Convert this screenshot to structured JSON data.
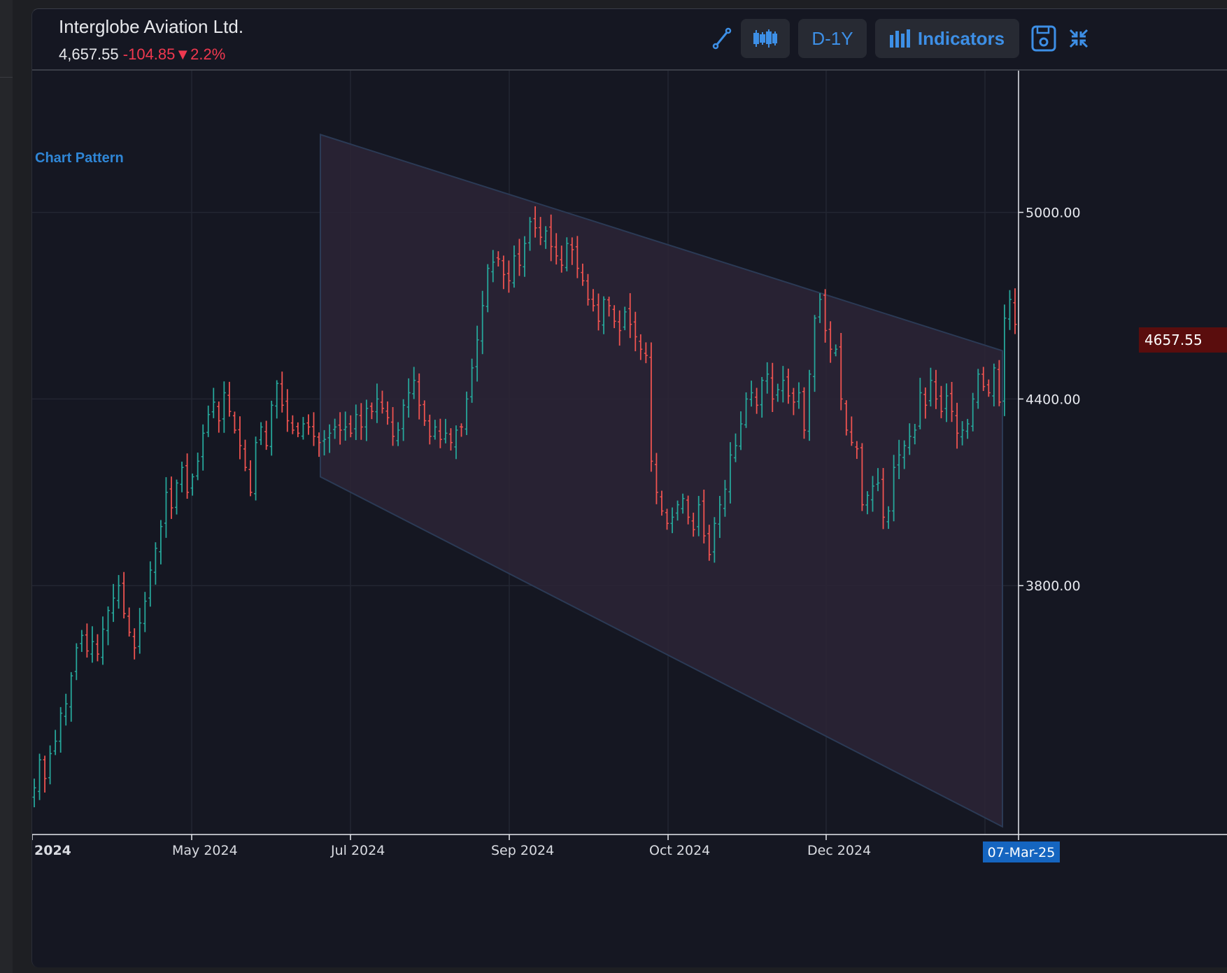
{
  "header": {
    "title": "Interglobe Aviation Ltd.",
    "price": "4,657.55",
    "change": "-104.85",
    "change_arrow": "▼",
    "change_pct": "2.2%"
  },
  "toolbar": {
    "draw_icon": "line-draw-icon",
    "chart_type_icon": "candlestick-icon",
    "timeframe_label": "D-1Y",
    "indicators_label": "Indicators",
    "indicators_icon": "bar-chart-icon",
    "save_icon": "save-icon",
    "collapse_icon": "collapse-arrows-icon"
  },
  "colors": {
    "background": "#151722",
    "up": "#26a69a",
    "down": "#ef5350",
    "accent": "#3d8fe6",
    "last_price_bg": "#5a0d0d",
    "channel_fill": "#2c2536"
  },
  "chart_data": {
    "type": "ohlc",
    "title": "",
    "overlay_label": "Chart Pattern",
    "overlay_type": "descending channel",
    "x_tick_labels": [
      "2024",
      "May 2024",
      "Jul 2024",
      "Sep 2024",
      "Oct 2024",
      "Dec 2024"
    ],
    "x_current_label": "07-Mar-25",
    "y_tick_labels": [
      "5000.00",
      "4400.00",
      "3800.00"
    ],
    "y_ticks": [
      5000,
      4400,
      3800
    ],
    "ylim": [
      3000,
      5460
    ],
    "last_price": 4657.55,
    "last_price_label": "4657.55",
    "grid": true,
    "channel": {
      "upper_start": 5250,
      "upper_end": 4555,
      "lower_start": 4150,
      "lower_end": 3025
    },
    "series": [
      {
        "close": [
          3150,
          3240,
          3180,
          3260,
          3300,
          3390,
          3420,
          3510,
          3600,
          3640,
          3590,
          3620,
          3580,
          3660,
          3720,
          3760,
          3800,
          3710,
          3650,
          3600,
          3680,
          3750,
          3850,
          3920,
          3990,
          4100,
          4050,
          4130,
          4180,
          4100,
          4150,
          4200,
          4290,
          4350,
          4390,
          4330,
          4420,
          4360,
          4300,
          4250,
          4180,
          4100,
          4260,
          4310,
          4250,
          4380,
          4450,
          4380,
          4330,
          4300,
          4290,
          4320,
          4310,
          4280,
          4260,
          4270,
          4290,
          4310,
          4300,
          4310,
          4290,
          4350,
          4310,
          4370,
          4360,
          4400,
          4370,
          4340,
          4280,
          4300,
          4380,
          4420,
          4460,
          4380,
          4330,
          4280,
          4310,
          4270,
          4290,
          4260,
          4300,
          4310,
          4400,
          4500,
          4590,
          4700,
          4820,
          4840,
          4850,
          4800,
          4780,
          4860,
          4830,
          4900,
          4970,
          4950,
          4920,
          4940,
          4890,
          4860,
          4830,
          4900,
          4880,
          4820,
          4780,
          4720,
          4700,
          4650,
          4720,
          4700,
          4650,
          4620,
          4680,
          4640,
          4600,
          4560,
          4540,
          4200,
          4100,
          4040,
          4000,
          4020,
          4060,
          4080,
          4020,
          3980,
          4060,
          3960,
          3900,
          4000,
          4060,
          4110,
          4220,
          4250,
          4320,
          4400,
          4420,
          4380,
          4460,
          4480,
          4400,
          4430,
          4460,
          4410,
          4390,
          4420,
          4300,
          4480,
          4660,
          4720,
          4620,
          4560,
          4560,
          4400,
          4300,
          4260,
          4240,
          4060,
          4090,
          4120,
          4130,
          4020,
          4040,
          4180,
          4220,
          4250,
          4280,
          4300,
          4420,
          4380,
          4460,
          4400,
          4360,
          4410,
          4360,
          4290,
          4300,
          4320,
          4400,
          4480,
          4440,
          4420,
          4500,
          4390,
          4660,
          4720,
          4640
        ]
      }
    ]
  }
}
